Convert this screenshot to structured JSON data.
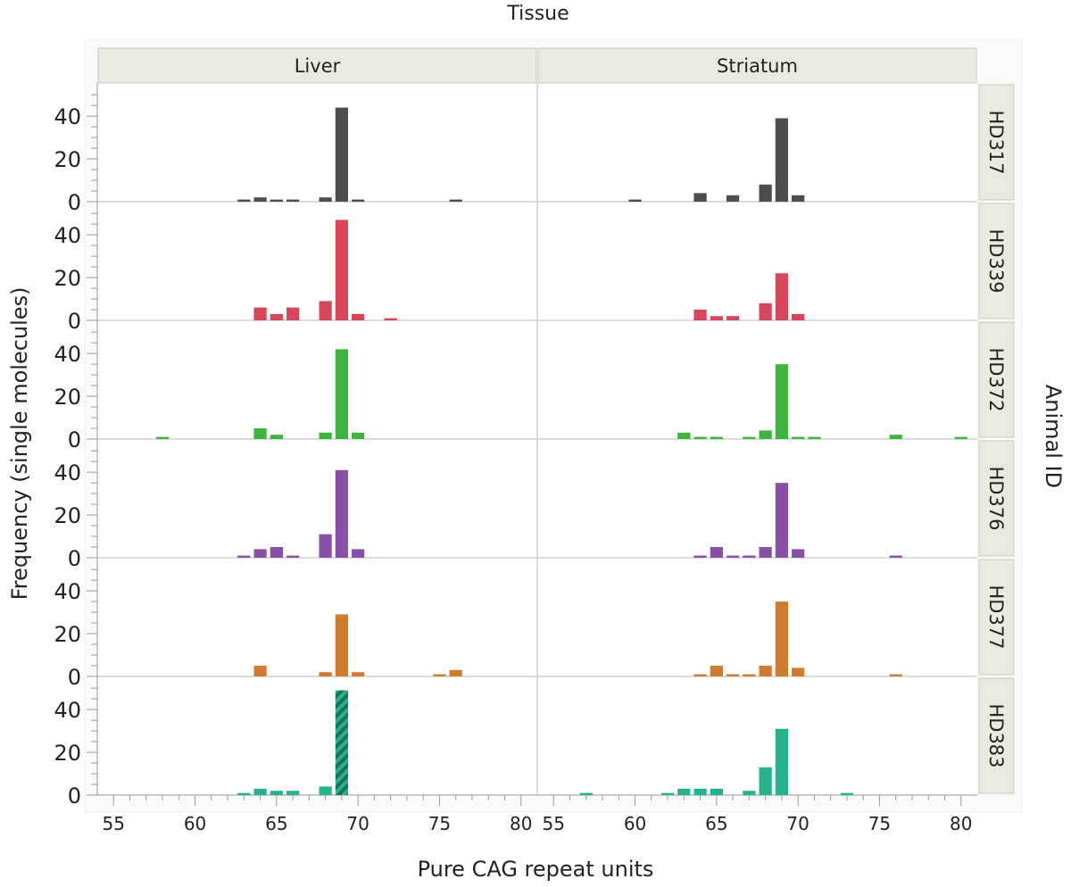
{
  "chart_data": {
    "type": "bar",
    "title": "Tissue",
    "xlabel": "Pure CAG repeat units",
    "ylabel": "Frequency (single molecules)",
    "row_group_label": "Animal ID",
    "columns": [
      "Liver",
      "Striatum"
    ],
    "rows": [
      "HD317",
      "HD339",
      "HD372",
      "HD376",
      "HD377",
      "HD383"
    ],
    "row_colors": [
      "#4d4d4d",
      "#d9465a",
      "#3db43d",
      "#8a4fa6",
      "#d27b2e",
      "#25b38d"
    ],
    "xlim": [
      54,
      81
    ],
    "x_ticks": [
      55,
      60,
      65,
      70,
      75,
      80
    ],
    "ylim": [
      0,
      53
    ],
    "y_ticks": [
      0,
      20,
      40
    ],
    "panels": [
      {
        "row": "HD317",
        "column": "Liver",
        "x": [
          63,
          64,
          65,
          66,
          68,
          69,
          70,
          76
        ],
        "values": [
          1,
          2,
          1,
          1,
          2,
          44,
          1,
          1
        ]
      },
      {
        "row": "HD317",
        "column": "Striatum",
        "x": [
          60,
          64,
          66,
          68,
          69,
          70
        ],
        "values": [
          1,
          4,
          3,
          8,
          39,
          3
        ]
      },
      {
        "row": "HD339",
        "column": "Liver",
        "x": [
          64,
          65,
          66,
          68,
          69,
          70,
          72
        ],
        "values": [
          6,
          3,
          6,
          9,
          47,
          3,
          1
        ]
      },
      {
        "row": "HD339",
        "column": "Striatum",
        "x": [
          64,
          65,
          66,
          68,
          69,
          70
        ],
        "values": [
          5,
          2,
          2,
          8,
          22,
          3
        ]
      },
      {
        "row": "HD372",
        "column": "Liver",
        "x": [
          58,
          64,
          65,
          68,
          69,
          70
        ],
        "values": [
          1,
          5,
          2,
          3,
          42,
          3
        ]
      },
      {
        "row": "HD372",
        "column": "Striatum",
        "x": [
          63,
          64,
          65,
          67,
          68,
          69,
          70,
          71,
          76,
          80
        ],
        "values": [
          3,
          1,
          1,
          1,
          4,
          35,
          1,
          1,
          2,
          1
        ]
      },
      {
        "row": "HD376",
        "column": "Liver",
        "x": [
          63,
          64,
          65,
          66,
          68,
          69,
          70
        ],
        "values": [
          1,
          4,
          5,
          1,
          11,
          41,
          4
        ]
      },
      {
        "row": "HD376",
        "column": "Striatum",
        "x": [
          64,
          65,
          66,
          67,
          68,
          69,
          70,
          76
        ],
        "values": [
          1,
          5,
          1,
          1,
          5,
          35,
          4,
          1
        ]
      },
      {
        "row": "HD377",
        "column": "Liver",
        "x": [
          64,
          68,
          69,
          70,
          75,
          76
        ],
        "values": [
          5,
          2,
          29,
          2,
          1,
          3
        ]
      },
      {
        "row": "HD377",
        "column": "Striatum",
        "x": [
          64,
          65,
          66,
          67,
          68,
          69,
          70,
          76
        ],
        "values": [
          1,
          5,
          1,
          1,
          5,
          35,
          4,
          1
        ]
      },
      {
        "row": "HD383",
        "column": "Liver",
        "x": [
          63,
          64,
          65,
          66,
          68,
          69
        ],
        "values": [
          1,
          3,
          2,
          2,
          4,
          49
        ],
        "hatched_x": [
          69
        ]
      },
      {
        "row": "HD383",
        "column": "Striatum",
        "x": [
          57,
          62,
          63,
          64,
          65,
          67,
          68,
          69,
          73
        ],
        "values": [
          1,
          1,
          3,
          3,
          3,
          2,
          13,
          31,
          1
        ]
      }
    ]
  }
}
